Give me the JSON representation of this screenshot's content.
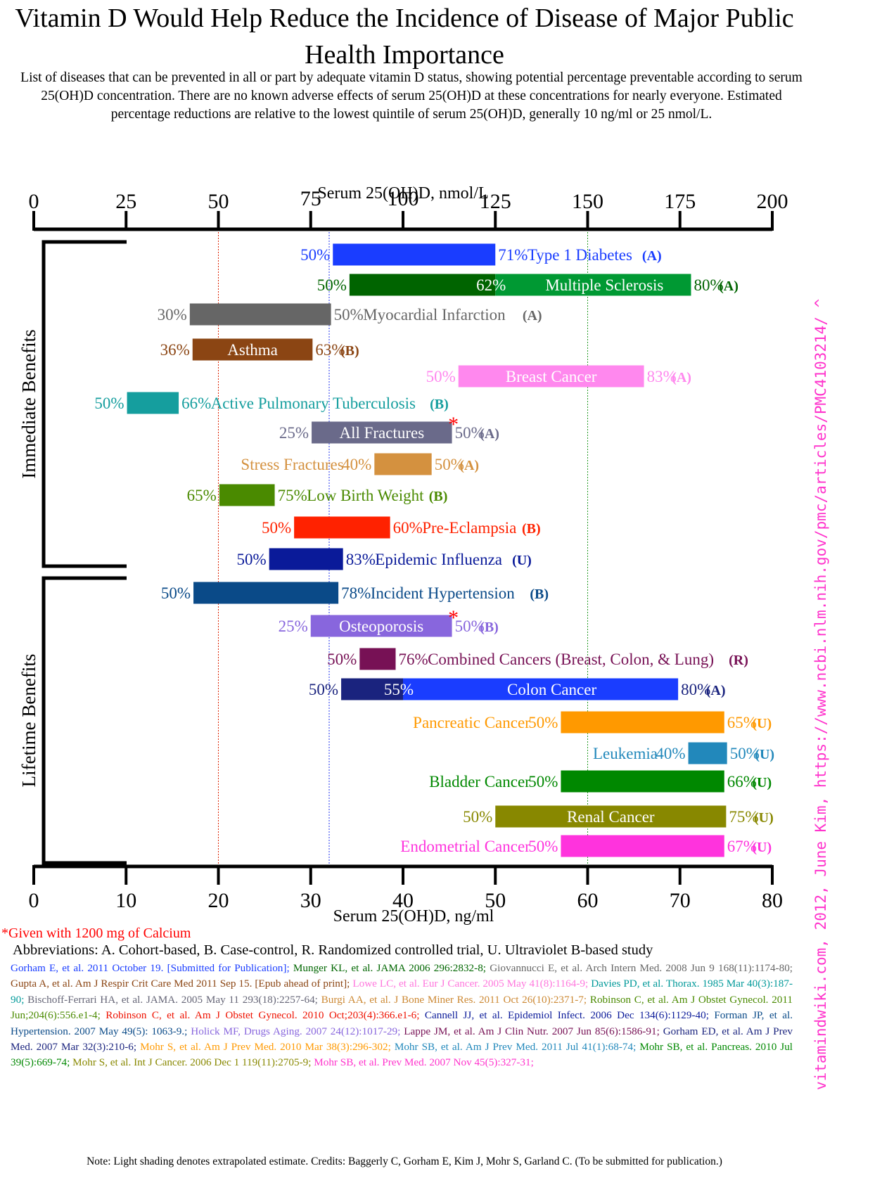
{
  "title": "Vitamin D Would Help Reduce the Incidence of Disease of Major Public Health Importance",
  "subtitle": "List of diseases that can be prevented in all or part by adequate vitamin D status, showing potential percentage preventable according to serum 25(OH)D concentration. There are no known adverse effects of serum 25(OH)D at these concentrations for nearly everyone. Estimated percentage reductions are relative to the lowest quintile of serum 25(OH)D, generally 10 ng/ml or 25 nmol/L.",
  "side_note": "vitamindwiki.com, 2012, June Kim, https://www.ncbi.nlm.nih.gov/pmc/articles/PMC4103214/ ^",
  "calcium_note": "*Given with 1200 mg of Calcium",
  "abbreviations": "Abbreviations: A. Cohort-based, B. Case-control, R. Randomized controlled trial, U. Ultraviolet B-based study",
  "references": [
    {
      "text": "Gorham E, et al. 2011 October 19. [Submitted for Publication];",
      "color": "#1a3dff"
    },
    {
      "text": "Munger KL, et al. JAMA 2006 296:2832-8;",
      "color": "#006600"
    },
    {
      "text": "Giovannucci E, et al. Arch Intern Med. 2008 Jun 9 168(11):1174-80;",
      "color": "#666666"
    },
    {
      "text": "Gupta A, et al. Am J Respir Crit Care Med 2011 Sep 15. [Epub ahead of print];",
      "color": "#8b4513"
    },
    {
      "text": "Lowe LC, et al. Eur J Cancer. 2005 May 41(8):1164-9;",
      "color": "#ff77dd"
    },
    {
      "text": "Davies PD, et al. Thorax. 1985 Mar 40(3):187-90;",
      "color": "#009999"
    },
    {
      "text": "Bischoff-Ferrari HA, et al. JAMA. 2005 May 11 293(18):2257-64;",
      "color": "#666677"
    },
    {
      "text": "Burgi AA, et al. J Bone Miner Res. 2011 Oct 26(10):2371-7;",
      "color": "#cc8833"
    },
    {
      "text": "Robinson C, et al. Am J Obstet Gynecol. 2011 Jun;204(6):556.e1-4;",
      "color": "#4a8a00"
    },
    {
      "text": "Robinson C, et al. Am J Obstet Gynecol. 2010 Oct;203(4):366.e1-6;",
      "color": "#ee1100"
    },
    {
      "text": "Cannell JJ, et al. Epidemiol Infect. 2006 Dec 134(6):1129-40;",
      "color": "#0a1a99"
    },
    {
      "text": "Forman JP, et al. Hypertension. 2007 May 49(5): 1063-9.;",
      "color": "#0a4a88"
    },
    {
      "text": "Holick MF, Drugs Aging. 2007 24(12):1017-29;",
      "color": "#8866dd"
    },
    {
      "text": "Lappe JM, et al. Am J Clin Nutr. 2007 Jun 85(6):1586-91;",
      "color": "#771155"
    },
    {
      "text": "Gorham ED, et al. Am J Prev Med. 2007 Mar 32(3):210-6;",
      "color": "#1a237e"
    },
    {
      "text": "Mohr S, et al. Am J Prev Med. 2010 Mar 38(3):296-302;",
      "color": "#ff9900"
    },
    {
      "text": "Mohr SB, et al. Am J Prev Med. 2011 Jul 41(1):68-74;",
      "color": "#2288bb"
    },
    {
      "text": "Mohr SB, et al. Pancreas. 2010 Jul 39(5):669-74;",
      "color": "#008800"
    },
    {
      "text": "Mohr S, et al. Int J Cancer. 2006 Dec 1 119(11):2705-9;",
      "color": "#888800"
    },
    {
      "text": "Mohr SB, et al. Prev Med. 2007 Nov 45(5):327-31;",
      "color": "#ff33cc"
    }
  ],
  "footer_note": "Note: Light shading denotes extrapolated estimate.  Credits: Baggerly C, Gorham E, Kim J, Mohr S, Garland C. (To be submitted for publication.)",
  "chart_data": {
    "type": "bar",
    "orientation": "horizontal-range",
    "x_top": {
      "label": "Serum 25(OH)D, nmol/L",
      "ticks": [
        "0",
        "25",
        "50",
        "75",
        "100",
        "125",
        "150",
        "175",
        "200"
      ],
      "range": [
        0,
        200
      ]
    },
    "x_bottom": {
      "label": "Serum 25(OH)D, ng/ml",
      "ticks": [
        "0",
        "10",
        "20",
        "30",
        "40",
        "50",
        "60",
        "70",
        "80"
      ],
      "range": [
        0,
        80
      ]
    },
    "reference_lines_ngml": [
      {
        "value": 20,
        "color": "#dd2200"
      },
      {
        "value": 32,
        "color": "#2233ee"
      },
      {
        "value": 60,
        "color": "#229922"
      }
    ],
    "groups": [
      {
        "name": "Immediate Benefits"
      },
      {
        "name": "Lifetime Benefits"
      }
    ],
    "rows": [
      {
        "disease": "Type 1 Diabetes",
        "start": 32.4,
        "end": 50,
        "start_label": "50%",
        "end_label": "71%",
        "code": "(A)",
        "color": "#1a3dff",
        "layout": "right"
      },
      {
        "disease": "Multiple Sclerosis",
        "start": 34.2,
        "end": 71.2,
        "split": 50,
        "start_label": "50%",
        "mid_label": "62%",
        "end_label": "80%",
        "code": "(A)",
        "color": "#006400",
        "color2": "#009933",
        "layout": "inside"
      },
      {
        "disease": "Myocardial Infarction",
        "start": 16.9,
        "end": 32.2,
        "start_label": "30%",
        "end_label": "50%",
        "code": "(A)",
        "color": "#666666",
        "layout": "right"
      },
      {
        "disease": "Asthma",
        "start": 17.2,
        "end": 30.2,
        "start_label": "36%",
        "end_label": "63%",
        "code": "(B)",
        "color": "#8b4513",
        "layout": "inside"
      },
      {
        "disease": "Breast Cancer",
        "start": 46,
        "end": 66.1,
        "start_label": "50%",
        "end_label": "83%",
        "code": "(A)",
        "color": "#ff88ee",
        "layout": "inside"
      },
      {
        "disease": "Active Pulmonary Tuberculosis",
        "start": 10.1,
        "end": 15.7,
        "start_label": "50%",
        "end_label": "66%",
        "code": "(B)",
        "color": "#159e9e",
        "layout": "right"
      },
      {
        "disease": "All Fractures",
        "start": 30.1,
        "end": 45.3,
        "start_label": "25%",
        "end_label": "50%",
        "code": "(A)",
        "color": "#6a6a8a",
        "layout": "inside",
        "asterisk": true
      },
      {
        "disease": "Stress Fractures",
        "start": 36.9,
        "end": 43.1,
        "start_label": "40%",
        "end_label": "50%",
        "code": "(A)",
        "color": "#d4913f",
        "layout": "left"
      },
      {
        "disease": "Low Birth Weight",
        "start": 20.1,
        "end": 26.1,
        "start_label": "65%",
        "end_label": "75%",
        "code": "(B)",
        "color": "#4a8a00",
        "layout": "right"
      },
      {
        "disease": "Pre-Eclampsia",
        "start": 28.2,
        "end": 38.6,
        "start_label": "50%",
        "end_label": "60%",
        "code": "(B)",
        "color": "#ff2200",
        "layout": "right"
      },
      {
        "disease": "Epidemic Influenza",
        "start": 25.5,
        "end": 33.5,
        "start_label": "50%",
        "end_label": "83%",
        "code": "(U)",
        "color": "#0a1a99",
        "layout": "right"
      },
      {
        "disease": "Incident Hypertension",
        "start": 17.3,
        "end": 33,
        "start_label": "50%",
        "end_label": "78%",
        "code": "(B)",
        "color": "#0a4a88",
        "layout": "right"
      },
      {
        "disease": "Osteoporosis",
        "start": 30,
        "end": 45.3,
        "start_label": "25%",
        "end_label": "50%",
        "code": "(B)",
        "color": "#8866dd",
        "layout": "inside",
        "asterisk": true
      },
      {
        "disease": "Combined Cancers (Breast, Colon, & Lung)",
        "start": 35.3,
        "end": 39.2,
        "start_label": "50%",
        "end_label": "76%",
        "code": "(R)",
        "color": "#771155",
        "layout": "right"
      },
      {
        "disease": "Colon Cancer",
        "start": 33.3,
        "end": 69.8,
        "split": 40,
        "start_label": "50%",
        "mid_label": "55%",
        "end_label": "80%",
        "code": "(A)",
        "color": "#1a237e",
        "color2": "#1a3dff",
        "layout": "inside"
      },
      {
        "disease": "Pancreatic Cancer",
        "start": 57.1,
        "end": 74.8,
        "start_label": "50%",
        "end_label": "65%",
        "code": "(U)",
        "color": "#ff9900",
        "layout": "left"
      },
      {
        "disease": "Leukemia",
        "start": 70.9,
        "end": 75.1,
        "start_label": "40%",
        "end_label": "50%",
        "code": "(U)",
        "color": "#2288bb",
        "layout": "left"
      },
      {
        "disease": "Bladder Cancer",
        "start": 57.1,
        "end": 74.8,
        "start_label": "50%",
        "end_label": "66%",
        "code": "(U)",
        "color": "#008800",
        "layout": "left"
      },
      {
        "disease": "Renal Cancer",
        "start": 50,
        "end": 75,
        "start_label": "50%",
        "end_label": "75%",
        "code": "(U)",
        "color": "#888800",
        "layout": "inside"
      },
      {
        "disease": "Endometrial Cancer",
        "start": 57.1,
        "end": 74.8,
        "start_label": "50%",
        "end_label": "67%",
        "code": "(U)",
        "color": "#ff33dd",
        "layout": "left"
      }
    ]
  }
}
